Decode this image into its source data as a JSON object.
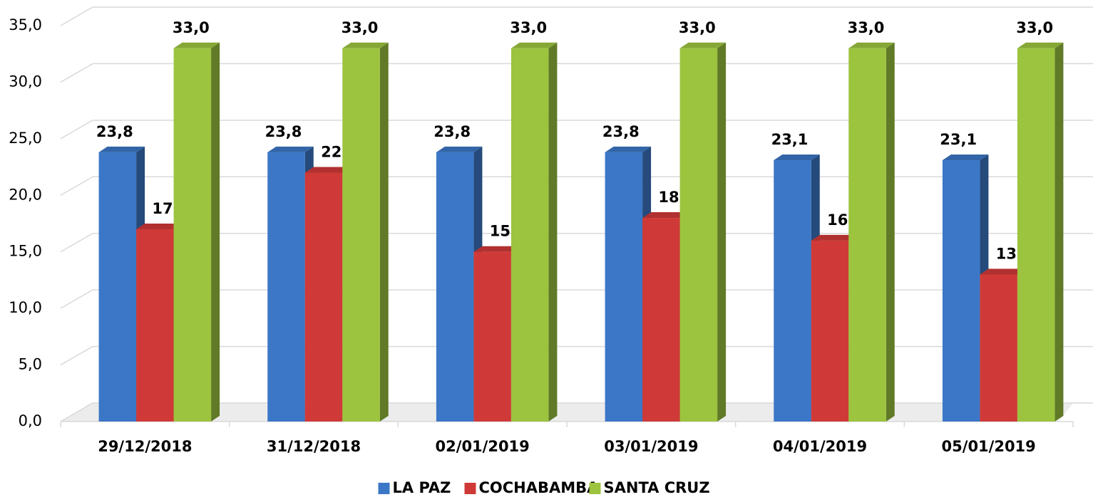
{
  "chart_data": {
    "type": "bar3d",
    "categories": [
      "29/12/2018",
      "31/12/2018",
      "02/01/2019",
      "03/01/2019",
      "04/01/2019",
      "05/01/2019"
    ],
    "series": [
      {
        "name": "LA PAZ",
        "color": "#3b77c6",
        "values": [
          23.8,
          23.8,
          23.8,
          23.8,
          23.1,
          23.1
        ],
        "value_labels": [
          "23,8",
          "23,8",
          "23,8",
          "23,8",
          "23,1",
          "23,1"
        ]
      },
      {
        "name": "COCHABAMBA",
        "color": "#cf3a38",
        "values": [
          17.0,
          22.0,
          15.0,
          18.0,
          16.0,
          13.0
        ],
        "value_labels": [
          "17,0",
          "22,0",
          "15,0",
          "18,0",
          "16,0",
          "13,0"
        ]
      },
      {
        "name": "SANTA CRUZ",
        "color": "#9cc43f",
        "values": [
          33.0,
          33.0,
          33.0,
          33.0,
          33.0,
          33.0
        ],
        "value_labels": [
          "33,0",
          "33,0",
          "33,0",
          "33,0",
          "33,0",
          "33,0"
        ]
      }
    ],
    "ylim": [
      0,
      35
    ],
    "yticks": [
      {
        "value": 0,
        "label": "0,0"
      },
      {
        "value": 5,
        "label": "5,0"
      },
      {
        "value": 10,
        "label": "10,0"
      },
      {
        "value": 15,
        "label": "15,0"
      },
      {
        "value": 20,
        "label": "20,0"
      },
      {
        "value": 25,
        "label": "25,0"
      },
      {
        "value": 30,
        "label": "30,0"
      },
      {
        "value": 35,
        "label": "35,0"
      }
    ],
    "grid": true,
    "legend": "bottom"
  }
}
